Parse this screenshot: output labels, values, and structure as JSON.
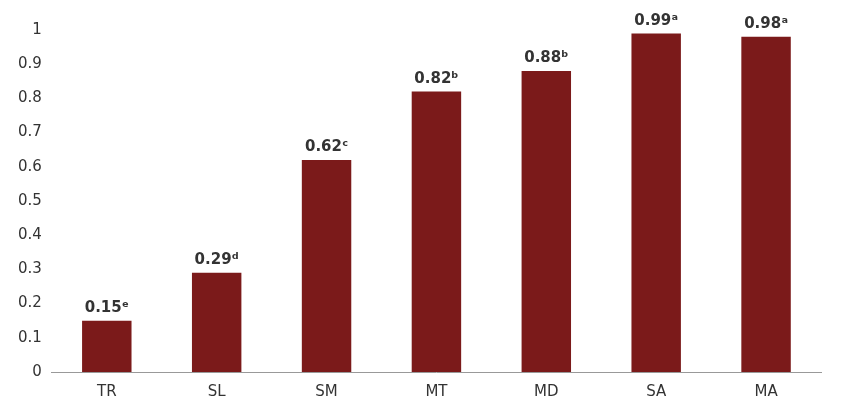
{
  "chart_data": {
    "type": "bar",
    "categories": [
      "TR",
      "SL",
      "SM",
      "MT",
      "MD",
      "SA",
      "MA"
    ],
    "values": [
      0.15,
      0.29,
      0.62,
      0.82,
      0.88,
      0.99,
      0.98
    ],
    "value_labels": [
      "0.15ᵉ",
      "0.29ᵈ",
      "0.62ᶜ",
      "0.82ᵇ",
      "0.88ᵇ",
      "0.99ᵃ",
      "0.98ᵃ"
    ],
    "data_labels": true,
    "color": "#7b1a1a",
    "ylim": [
      0,
      1
    ],
    "yticks": [
      0,
      0.1,
      0.2,
      0.3,
      0.4,
      0.5,
      0.6,
      0.7,
      0.8,
      0.9,
      1
    ],
    "grid": false
  }
}
